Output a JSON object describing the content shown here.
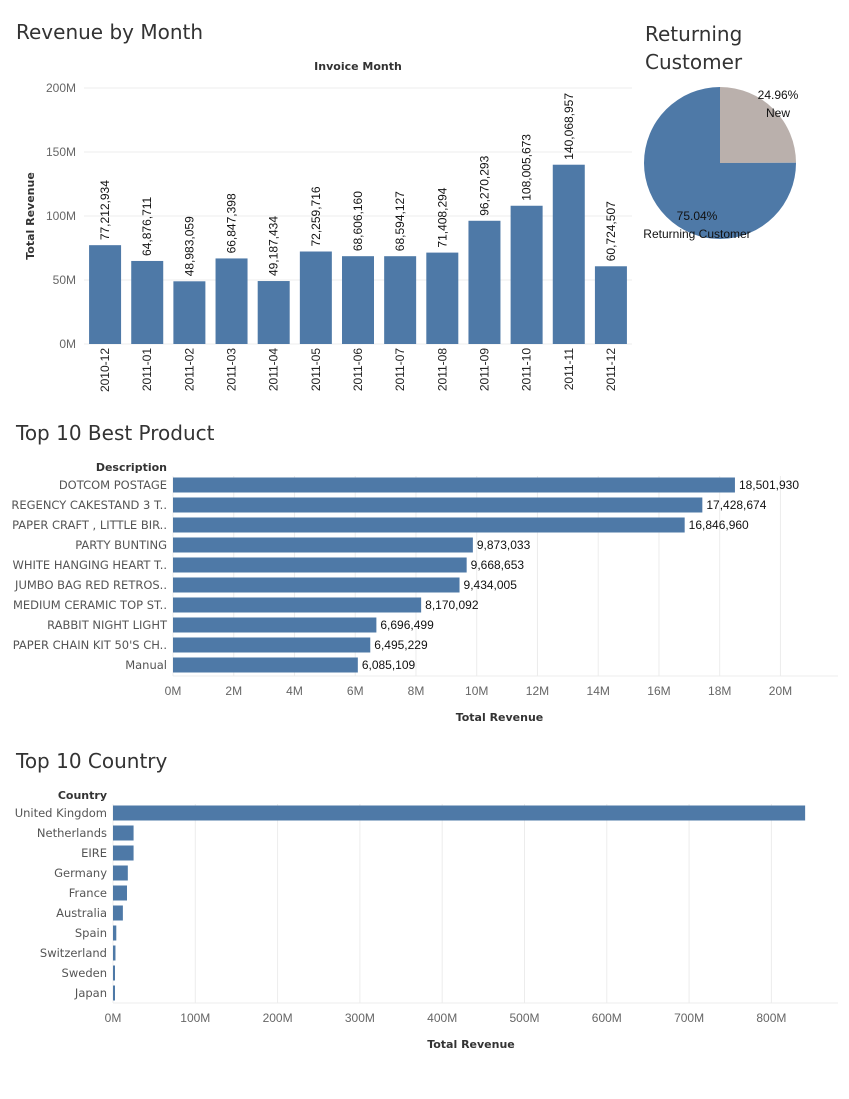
{
  "chart_data": [
    {
      "type": "bar",
      "title": "Revenue by Month",
      "column_header": "Invoice Month",
      "ylabel": "Total Revenue",
      "categories": [
        "2010-12",
        "2011-01",
        "2011-02",
        "2011-03",
        "2011-04",
        "2011-05",
        "2011-06",
        "2011-07",
        "2011-08",
        "2011-09",
        "2011-10",
        "2011-11",
        "2011-12"
      ],
      "values": [
        77212934,
        64876711,
        48983059,
        66847398,
        49187434,
        72259716,
        68606160,
        68594127,
        71408294,
        96270293,
        108005673,
        140068957,
        60724507
      ],
      "value_labels": [
        "77,212,934",
        "64,876,711",
        "48,983,059",
        "66,847,398",
        "49,187,434",
        "72,259,716",
        "68,606,160",
        "68,594,127",
        "71,408,294",
        "96,270,293",
        "108,005,673",
        "140,068,957",
        "60,724,507"
      ],
      "ylim": [
        0,
        200000000
      ],
      "yticks": [
        0,
        50000000,
        100000000,
        150000000,
        200000000
      ],
      "ytick_labels": [
        "0M",
        "50M",
        "100M",
        "150M",
        "200M"
      ],
      "color": "#4e79a7",
      "grid": true
    },
    {
      "type": "pie",
      "title": "Returning Customer",
      "slices": [
        {
          "label": "New",
          "value": 24.96,
          "value_label": "24.96%",
          "color": "#bab0ac"
        },
        {
          "label": "Returning Customer",
          "value": 75.04,
          "value_label": "75.04%",
          "color": "#4e79a7"
        }
      ]
    },
    {
      "type": "bar",
      "orientation": "horizontal",
      "title": "Top 10 Best Product",
      "row_header": "Description",
      "xlabel": "Total Revenue",
      "categories": [
        "DOTCOM POSTAGE",
        "REGENCY CAKESTAND 3 T..",
        "PAPER CRAFT , LITTLE BIR..",
        "PARTY BUNTING",
        "WHITE HANGING HEART T..",
        "JUMBO BAG RED RETROS..",
        "MEDIUM CERAMIC TOP ST..",
        "RABBIT NIGHT LIGHT",
        "PAPER CHAIN KIT 50'S CH..",
        "Manual"
      ],
      "values": [
        18501930,
        17428674,
        16846960,
        9873033,
        9668653,
        9434005,
        8170092,
        6696499,
        6495229,
        6085109
      ],
      "value_labels": [
        "18,501,930",
        "17,428,674",
        "16,846,960",
        "9,873,033",
        "9,668,653",
        "9,434,005",
        "8,170,092",
        "6,696,499",
        "6,495,229",
        "6,085,109"
      ],
      "xlim": [
        0,
        21500000
      ],
      "xticks": [
        0,
        2000000,
        4000000,
        6000000,
        8000000,
        10000000,
        12000000,
        14000000,
        16000000,
        18000000,
        20000000
      ],
      "xtick_labels": [
        "0M",
        "2M",
        "4M",
        "6M",
        "8M",
        "10M",
        "12M",
        "14M",
        "16M",
        "18M",
        "20M"
      ],
      "color": "#4e79a7",
      "grid": true
    },
    {
      "type": "bar",
      "orientation": "horizontal",
      "title": "Top 10 Country",
      "row_header": "Country",
      "xlabel": "Total Revenue",
      "categories": [
        "United Kingdom",
        "Netherlands",
        "EIRE",
        "Germany",
        "France",
        "Australia",
        "Spain",
        "Switzerland",
        "Sweden",
        "Japan"
      ],
      "values": [
        841000000,
        25000000,
        25000000,
        18000000,
        17000000,
        12000000,
        4000000,
        3000000,
        2000000,
        1500000
      ],
      "xlim": [
        0,
        870000000
      ],
      "xticks": [
        0,
        100000000,
        200000000,
        300000000,
        400000000,
        500000000,
        600000000,
        700000000,
        800000000
      ],
      "xtick_labels": [
        "0M",
        "100M",
        "200M",
        "300M",
        "400M",
        "500M",
        "600M",
        "700M",
        "800M"
      ],
      "color": "#4e79a7",
      "grid": true
    }
  ]
}
